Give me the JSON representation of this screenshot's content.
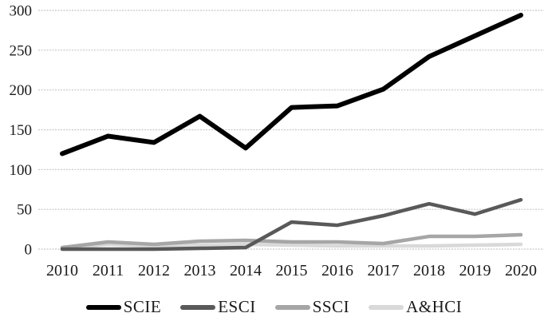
{
  "chart_data": {
    "type": "line",
    "title": "",
    "xlabel": "",
    "ylabel": "",
    "categories": [
      "2010",
      "2011",
      "2012",
      "2013",
      "2014",
      "2015",
      "2016",
      "2017",
      "2018",
      "2019",
      "2020"
    ],
    "series": [
      {
        "name": "SCIE",
        "color": "#000000",
        "line_width": 6,
        "values": [
          120,
          142,
          134,
          167,
          127,
          178,
          180,
          201,
          242,
          268,
          294
        ]
      },
      {
        "name": "ESCI",
        "color": "#595959",
        "line_width": 4.5,
        "values": [
          0,
          0,
          0,
          1,
          2,
          34,
          30,
          42,
          57,
          44,
          62
        ]
      },
      {
        "name": "SSCI",
        "color": "#a6a6a6",
        "line_width": 4.5,
        "values": [
          2,
          9,
          6,
          10,
          11,
          9,
          9,
          7,
          16,
          16,
          18
        ]
      },
      {
        "name": "A&HCI",
        "color": "#d9d9d9",
        "line_width": 4.5,
        "values": [
          1,
          6,
          4,
          5,
          6,
          5,
          4,
          4,
          4,
          5,
          6
        ]
      }
    ],
    "ylim": [
      0,
      300
    ],
    "yticks": [
      0,
      50,
      100,
      150,
      200,
      250,
      300
    ],
    "grid": true,
    "gridline_color": "#c5c5c5",
    "tick_label_color": "#1a1a1a",
    "legend_position": "bottom",
    "background_color": "#ffffff"
  }
}
